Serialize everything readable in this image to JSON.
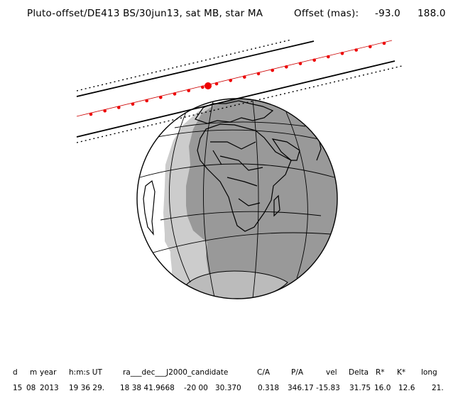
{
  "header": {
    "title": "Pluto-offset/DE413 BS/30jun13, sat MB, star MA",
    "offset_label": "Offset (mas):",
    "offset_ra": "-93.0",
    "offset_dec": "188.0"
  },
  "table": {
    "headers": [
      "d",
      "m",
      "year",
      "h:m:s UT",
      "ra___dec___J2000_candidate",
      "C/A",
      "P/A",
      "vel",
      "Delta",
      "R*",
      "K*",
      "long"
    ],
    "values": [
      "15",
      "08",
      "2013",
      "19 36 29.",
      "18 38 41.9668",
      "-20 00",
      "30.370",
      "0.318",
      "346.17",
      "-15.83",
      "31.75",
      "16.0",
      "12.6",
      "21."
    ]
  },
  "colors": {
    "night_side": "#999999",
    "twilight_band": "#cccccc",
    "day_side": "#ffffff",
    "track_dots": "#ee0000",
    "lines": "#000000"
  },
  "icons": [
    "earth-globe",
    "shadow-path"
  ]
}
